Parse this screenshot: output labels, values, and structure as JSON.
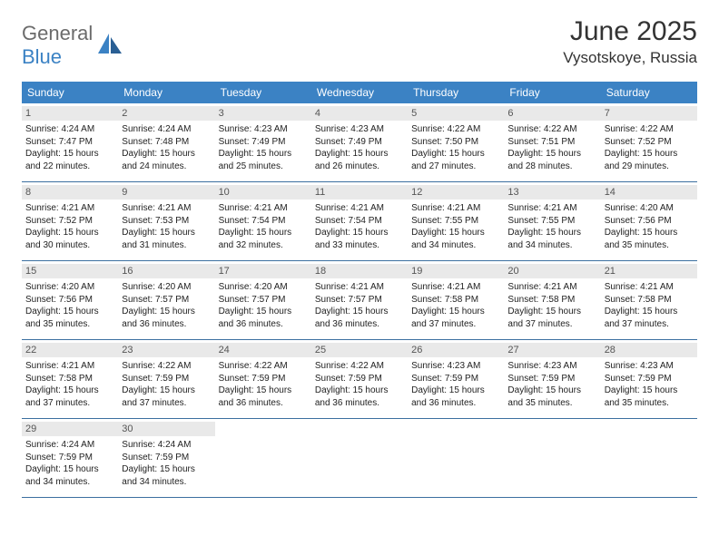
{
  "logo": {
    "part1": "General",
    "part2": "Blue"
  },
  "title": "June 2025",
  "location": "Vysotskoye, Russia",
  "colors": {
    "header_bg": "#3b82c4",
    "header_text": "#ffffff",
    "dayhead_bg": "#e9e9e9",
    "dayhead_text": "#555555",
    "row_border": "#3b6fa0",
    "logo_gray": "#6b6b6b",
    "logo_blue": "#3b82c4"
  },
  "dayNames": [
    "Sunday",
    "Monday",
    "Tuesday",
    "Wednesday",
    "Thursday",
    "Friday",
    "Saturday"
  ],
  "weeks": [
    [
      {
        "n": "1",
        "sr": "Sunrise: 4:24 AM",
        "ss": "Sunset: 7:47 PM",
        "d1": "Daylight: 15 hours",
        "d2": "and 22 minutes."
      },
      {
        "n": "2",
        "sr": "Sunrise: 4:24 AM",
        "ss": "Sunset: 7:48 PM",
        "d1": "Daylight: 15 hours",
        "d2": "and 24 minutes."
      },
      {
        "n": "3",
        "sr": "Sunrise: 4:23 AM",
        "ss": "Sunset: 7:49 PM",
        "d1": "Daylight: 15 hours",
        "d2": "and 25 minutes."
      },
      {
        "n": "4",
        "sr": "Sunrise: 4:23 AM",
        "ss": "Sunset: 7:49 PM",
        "d1": "Daylight: 15 hours",
        "d2": "and 26 minutes."
      },
      {
        "n": "5",
        "sr": "Sunrise: 4:22 AM",
        "ss": "Sunset: 7:50 PM",
        "d1": "Daylight: 15 hours",
        "d2": "and 27 minutes."
      },
      {
        "n": "6",
        "sr": "Sunrise: 4:22 AM",
        "ss": "Sunset: 7:51 PM",
        "d1": "Daylight: 15 hours",
        "d2": "and 28 minutes."
      },
      {
        "n": "7",
        "sr": "Sunrise: 4:22 AM",
        "ss": "Sunset: 7:52 PM",
        "d1": "Daylight: 15 hours",
        "d2": "and 29 minutes."
      }
    ],
    [
      {
        "n": "8",
        "sr": "Sunrise: 4:21 AM",
        "ss": "Sunset: 7:52 PM",
        "d1": "Daylight: 15 hours",
        "d2": "and 30 minutes."
      },
      {
        "n": "9",
        "sr": "Sunrise: 4:21 AM",
        "ss": "Sunset: 7:53 PM",
        "d1": "Daylight: 15 hours",
        "d2": "and 31 minutes."
      },
      {
        "n": "10",
        "sr": "Sunrise: 4:21 AM",
        "ss": "Sunset: 7:54 PM",
        "d1": "Daylight: 15 hours",
        "d2": "and 32 minutes."
      },
      {
        "n": "11",
        "sr": "Sunrise: 4:21 AM",
        "ss": "Sunset: 7:54 PM",
        "d1": "Daylight: 15 hours",
        "d2": "and 33 minutes."
      },
      {
        "n": "12",
        "sr": "Sunrise: 4:21 AM",
        "ss": "Sunset: 7:55 PM",
        "d1": "Daylight: 15 hours",
        "d2": "and 34 minutes."
      },
      {
        "n": "13",
        "sr": "Sunrise: 4:21 AM",
        "ss": "Sunset: 7:55 PM",
        "d1": "Daylight: 15 hours",
        "d2": "and 34 minutes."
      },
      {
        "n": "14",
        "sr": "Sunrise: 4:20 AM",
        "ss": "Sunset: 7:56 PM",
        "d1": "Daylight: 15 hours",
        "d2": "and 35 minutes."
      }
    ],
    [
      {
        "n": "15",
        "sr": "Sunrise: 4:20 AM",
        "ss": "Sunset: 7:56 PM",
        "d1": "Daylight: 15 hours",
        "d2": "and 35 minutes."
      },
      {
        "n": "16",
        "sr": "Sunrise: 4:20 AM",
        "ss": "Sunset: 7:57 PM",
        "d1": "Daylight: 15 hours",
        "d2": "and 36 minutes."
      },
      {
        "n": "17",
        "sr": "Sunrise: 4:20 AM",
        "ss": "Sunset: 7:57 PM",
        "d1": "Daylight: 15 hours",
        "d2": "and 36 minutes."
      },
      {
        "n": "18",
        "sr": "Sunrise: 4:21 AM",
        "ss": "Sunset: 7:57 PM",
        "d1": "Daylight: 15 hours",
        "d2": "and 36 minutes."
      },
      {
        "n": "19",
        "sr": "Sunrise: 4:21 AM",
        "ss": "Sunset: 7:58 PM",
        "d1": "Daylight: 15 hours",
        "d2": "and 37 minutes."
      },
      {
        "n": "20",
        "sr": "Sunrise: 4:21 AM",
        "ss": "Sunset: 7:58 PM",
        "d1": "Daylight: 15 hours",
        "d2": "and 37 minutes."
      },
      {
        "n": "21",
        "sr": "Sunrise: 4:21 AM",
        "ss": "Sunset: 7:58 PM",
        "d1": "Daylight: 15 hours",
        "d2": "and 37 minutes."
      }
    ],
    [
      {
        "n": "22",
        "sr": "Sunrise: 4:21 AM",
        "ss": "Sunset: 7:58 PM",
        "d1": "Daylight: 15 hours",
        "d2": "and 37 minutes."
      },
      {
        "n": "23",
        "sr": "Sunrise: 4:22 AM",
        "ss": "Sunset: 7:59 PM",
        "d1": "Daylight: 15 hours",
        "d2": "and 37 minutes."
      },
      {
        "n": "24",
        "sr": "Sunrise: 4:22 AM",
        "ss": "Sunset: 7:59 PM",
        "d1": "Daylight: 15 hours",
        "d2": "and 36 minutes."
      },
      {
        "n": "25",
        "sr": "Sunrise: 4:22 AM",
        "ss": "Sunset: 7:59 PM",
        "d1": "Daylight: 15 hours",
        "d2": "and 36 minutes."
      },
      {
        "n": "26",
        "sr": "Sunrise: 4:23 AM",
        "ss": "Sunset: 7:59 PM",
        "d1": "Daylight: 15 hours",
        "d2": "and 36 minutes."
      },
      {
        "n": "27",
        "sr": "Sunrise: 4:23 AM",
        "ss": "Sunset: 7:59 PM",
        "d1": "Daylight: 15 hours",
        "d2": "and 35 minutes."
      },
      {
        "n": "28",
        "sr": "Sunrise: 4:23 AM",
        "ss": "Sunset: 7:59 PM",
        "d1": "Daylight: 15 hours",
        "d2": "and 35 minutes."
      }
    ],
    [
      {
        "n": "29",
        "sr": "Sunrise: 4:24 AM",
        "ss": "Sunset: 7:59 PM",
        "d1": "Daylight: 15 hours",
        "d2": "and 34 minutes."
      },
      {
        "n": "30",
        "sr": "Sunrise: 4:24 AM",
        "ss": "Sunset: 7:59 PM",
        "d1": "Daylight: 15 hours",
        "d2": "and 34 minutes."
      },
      null,
      null,
      null,
      null,
      null
    ]
  ]
}
